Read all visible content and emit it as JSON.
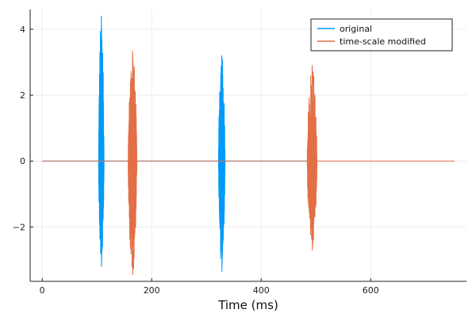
{
  "chart_data": {
    "type": "line",
    "title": "",
    "xlabel": "Time (ms)",
    "ylabel": "",
    "xlim": [
      -22,
      775
    ],
    "ylim": [
      -3.65,
      4.6
    ],
    "xticks": [
      0,
      200,
      400,
      600
    ],
    "yticks": [
      -2,
      0,
      2,
      4
    ],
    "xtick_labels": [
      "0",
      "200",
      "400",
      "600"
    ],
    "ytick_labels": [
      "−2",
      "0",
      "2",
      "4"
    ],
    "grid": true,
    "legend_position": "top-right",
    "series": [
      {
        "name": "original",
        "color": "#009af9",
        "x_range": [
          0,
          500
        ],
        "bursts": [
          {
            "start": 103,
            "end": 113,
            "max": 4.4,
            "min": -3.2
          },
          {
            "start": 322,
            "end": 334,
            "max": 3.2,
            "min": -3.35
          }
        ]
      },
      {
        "name": "time-scale modified",
        "color": "#e26f46",
        "x_range": [
          0,
          753
        ],
        "bursts": [
          {
            "start": 157,
            "end": 173,
            "max": 3.35,
            "min": -3.45
          },
          {
            "start": 484,
            "end": 502,
            "max": 2.9,
            "min": -2.7
          }
        ]
      }
    ]
  }
}
